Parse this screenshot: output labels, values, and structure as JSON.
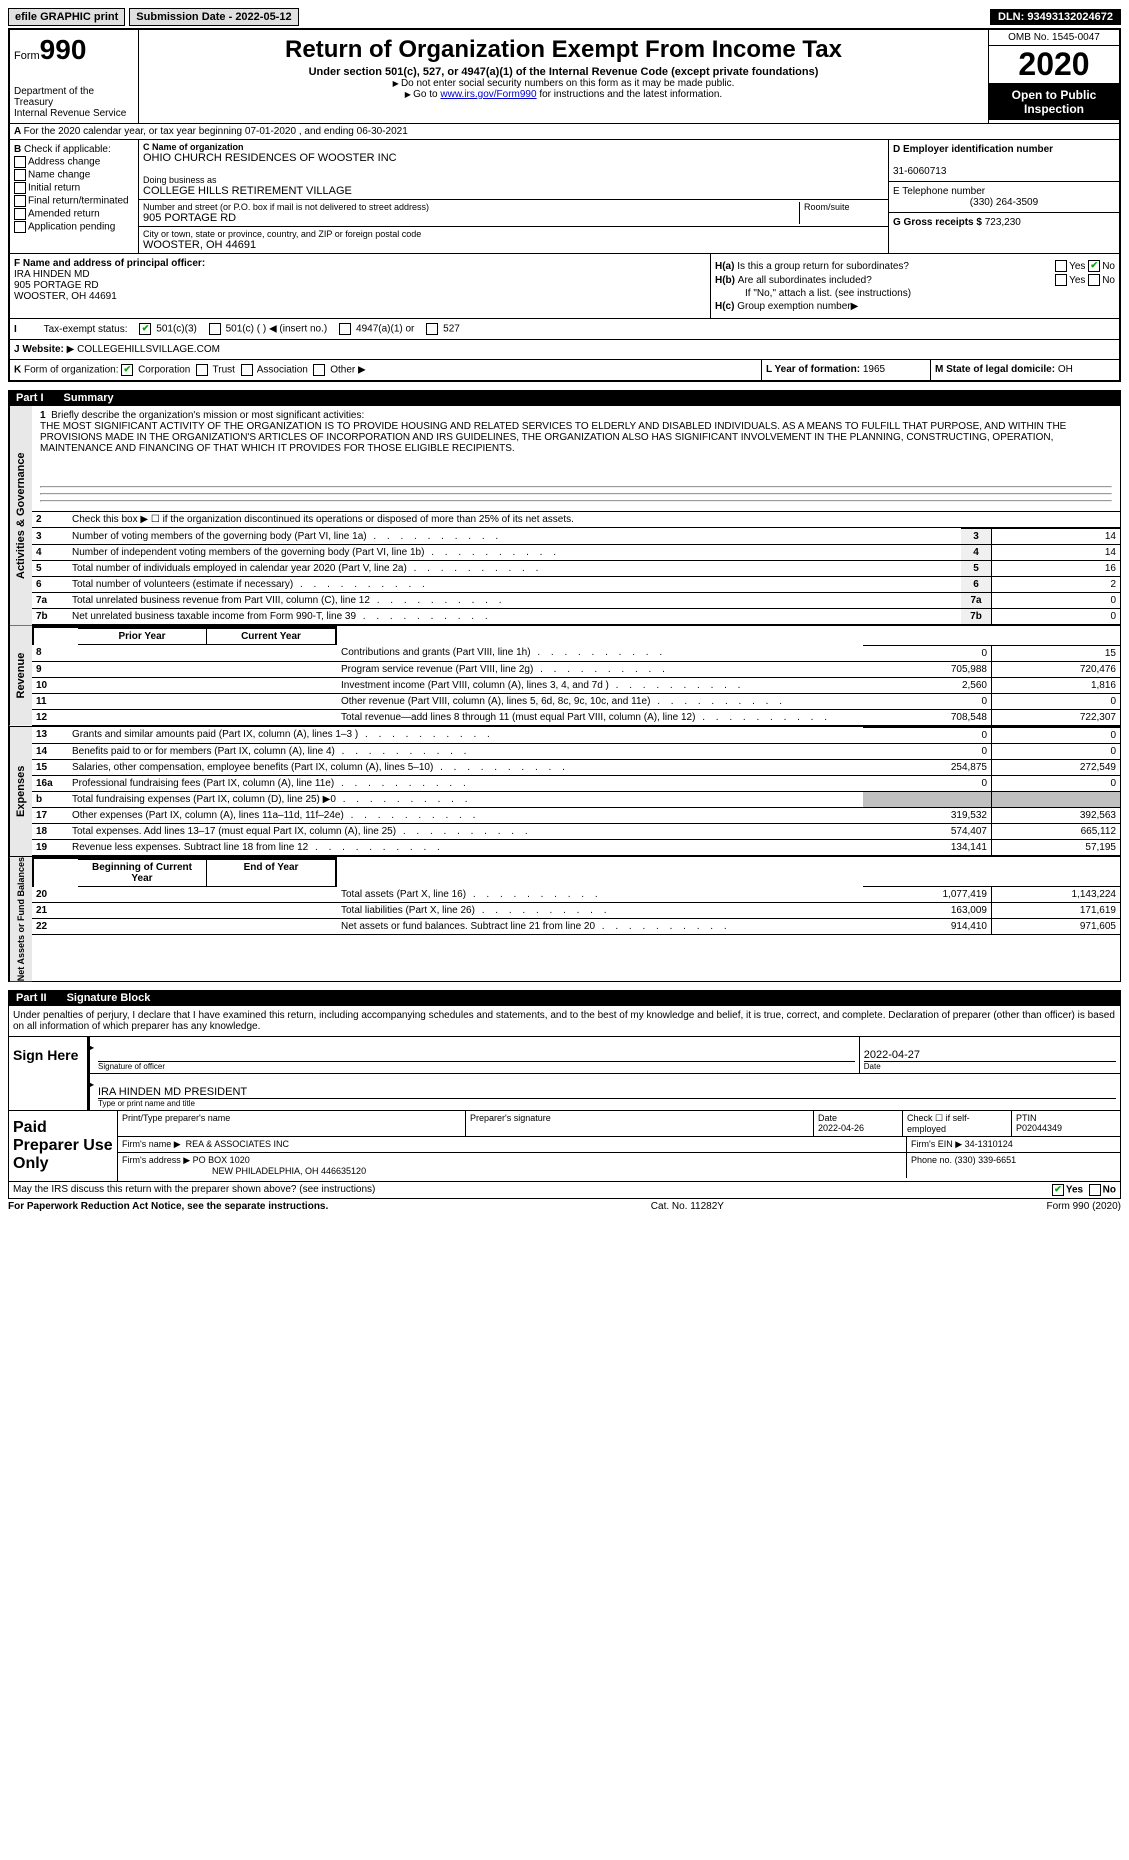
{
  "topbar": {
    "efile": "efile GRAPHIC print",
    "submission": "Submission Date - 2022-05-12",
    "dln": "DLN: 93493132024672"
  },
  "header": {
    "form_label": "Form",
    "form_num": "990",
    "dept": "Department of the Treasury",
    "irs": "Internal Revenue Service",
    "title": "Return of Organization Exempt From Income Tax",
    "subtitle": "Under section 501(c), 527, or 4947(a)(1) of the Internal Revenue Code (except private foundations)",
    "note1": "Do not enter social security numbers on this form as it may be made public.",
    "note2_pre": "Go to ",
    "note2_link": "www.irs.gov/Form990",
    "note2_post": " for instructions and the latest information.",
    "omb": "OMB No. 1545-0047",
    "year": "2020",
    "open": "Open to Public Inspection"
  },
  "rowA": "For the 2020 calendar year, or tax year beginning 07-01-2020   , and ending 06-30-2021",
  "boxB": {
    "label": "Check if applicable:",
    "opts": [
      "Address change",
      "Name change",
      "Initial return",
      "Final return/terminated",
      "Amended return",
      "Application pending"
    ]
  },
  "boxC": {
    "name_label": "C Name of organization",
    "name": "OHIO CHURCH RESIDENCES OF WOOSTER INC",
    "dba_label": "Doing business as",
    "dba": "COLLEGE HILLS RETIREMENT VILLAGE",
    "addr_label": "Number and street (or P.O. box if mail is not delivered to street address)",
    "room_label": "Room/suite",
    "addr": "905 PORTAGE RD",
    "city_label": "City or town, state or province, country, and ZIP or foreign postal code",
    "city": "WOOSTER, OH  44691"
  },
  "boxD": {
    "label": "D Employer identification number",
    "value": "31-6060713",
    "e_label": "E Telephone number",
    "e_value": "(330) 264-3509",
    "g_label": "G Gross receipts $",
    "g_value": "723,230"
  },
  "boxF": {
    "label": "F  Name and address of principal officer:",
    "name": "IRA HINDEN MD",
    "addr": "905 PORTAGE RD",
    "city": "WOOSTER, OH  44691"
  },
  "boxH": {
    "ha": "Is this a group return for subordinates?",
    "hb": "Are all subordinates included?",
    "hb_note": "If \"No,\" attach a list. (see instructions)",
    "hc": "Group exemption number",
    "yes": "Yes",
    "no": "No"
  },
  "rowI": {
    "label": "Tax-exempt status:",
    "opts": [
      "501(c)(3)",
      "501(c) (  ) ◀ (insert no.)",
      "4947(a)(1) or",
      "527"
    ]
  },
  "rowJ": {
    "label": "Website:",
    "value": "COLLEGEHILLSVILLAGE.COM"
  },
  "rowK": {
    "label": "Form of organization:",
    "opts": [
      "Corporation",
      "Trust",
      "Association",
      "Other"
    ],
    "l_label": "L Year of formation:",
    "l_value": "1965",
    "m_label": "M State of legal domicile:",
    "m_value": "OH"
  },
  "part1": {
    "num": "Part I",
    "title": "Summary",
    "section1_title": "Activities & Governance",
    "q1_label": "Briefly describe the organization's mission or most significant activities:",
    "q1_text": "THE MOST SIGNIFICANT ACTIVITY OF THE ORGANIZATION IS TO PROVIDE HOUSING AND RELATED SERVICES TO ELDERLY AND DISABLED INDIVIDUALS. AS A MEANS TO FULFILL THAT PURPOSE, AND WITHIN THE PROVISIONS MADE IN THE ORGANIZATION'S ARTICLES OF INCORPORATION AND IRS GUIDELINES, THE ORGANIZATION ALSO HAS SIGNIFICANT INVOLVEMENT IN THE PLANNING, CONSTRUCTING, OPERATION, MAINTENANCE AND FINANCING OF THAT WHICH IT PROVIDES FOR THOSE ELIGIBLE RECIPIENTS.",
    "q2": "Check this box ▶ ☐  if the organization discontinued its operations or disposed of more than 25% of its net assets.",
    "lines_single": [
      {
        "n": "3",
        "t": "Number of voting members of the governing body (Part VI, line 1a)",
        "v": "14"
      },
      {
        "n": "4",
        "t": "Number of independent voting members of the governing body (Part VI, line 1b)",
        "v": "14"
      },
      {
        "n": "5",
        "t": "Total number of individuals employed in calendar year 2020 (Part V, line 2a)",
        "v": "16"
      },
      {
        "n": "6",
        "t": "Total number of volunteers (estimate if necessary)",
        "v": "2"
      },
      {
        "n": "7a",
        "t": "Total unrelated business revenue from Part VIII, column (C), line 12",
        "v": "0"
      },
      {
        "n": "7b",
        "t": "Net unrelated business taxable income from Form 990-T, line 39",
        "v": "0"
      }
    ],
    "prior": "Prior Year",
    "current": "Current Year",
    "revenue_title": "Revenue",
    "revenue": [
      {
        "n": "8",
        "t": "Contributions and grants (Part VIII, line 1h)",
        "p": "0",
        "c": "15"
      },
      {
        "n": "9",
        "t": "Program service revenue (Part VIII, line 2g)",
        "p": "705,988",
        "c": "720,476"
      },
      {
        "n": "10",
        "t": "Investment income (Part VIII, column (A), lines 3, 4, and 7d )",
        "p": "2,560",
        "c": "1,816"
      },
      {
        "n": "11",
        "t": "Other revenue (Part VIII, column (A), lines 5, 6d, 8c, 9c, 10c, and 11e)",
        "p": "0",
        "c": "0"
      },
      {
        "n": "12",
        "t": "Total revenue—add lines 8 through 11 (must equal Part VIII, column (A), line 12)",
        "p": "708,548",
        "c": "722,307"
      }
    ],
    "expenses_title": "Expenses",
    "expenses": [
      {
        "n": "13",
        "t": "Grants and similar amounts paid (Part IX, column (A), lines 1–3 )",
        "p": "0",
        "c": "0"
      },
      {
        "n": "14",
        "t": "Benefits paid to or for members (Part IX, column (A), line 4)",
        "p": "0",
        "c": "0"
      },
      {
        "n": "15",
        "t": "Salaries, other compensation, employee benefits (Part IX, column (A), lines 5–10)",
        "p": "254,875",
        "c": "272,549"
      },
      {
        "n": "16a",
        "t": "Professional fundraising fees (Part IX, column (A), line 11e)",
        "p": "0",
        "c": "0"
      },
      {
        "n": "b",
        "t": "Total fundraising expenses (Part IX, column (D), line 25) ▶0",
        "p": "",
        "c": "",
        "gray": true
      },
      {
        "n": "17",
        "t": "Other expenses (Part IX, column (A), lines 11a–11d, 11f–24e)",
        "p": "319,532",
        "c": "392,563"
      },
      {
        "n": "18",
        "t": "Total expenses. Add lines 13–17 (must equal Part IX, column (A), line 25)",
        "p": "574,407",
        "c": "665,112"
      },
      {
        "n": "19",
        "t": "Revenue less expenses. Subtract line 18 from line 12",
        "p": "134,141",
        "c": "57,195"
      }
    ],
    "net_title": "Net Assets or Fund Balances",
    "begin": "Beginning of Current Year",
    "end": "End of Year",
    "net": [
      {
        "n": "20",
        "t": "Total assets (Part X, line 16)",
        "p": "1,077,419",
        "c": "1,143,224"
      },
      {
        "n": "21",
        "t": "Total liabilities (Part X, line 26)",
        "p": "163,009",
        "c": "171,619"
      },
      {
        "n": "22",
        "t": "Net assets or fund balances. Subtract line 21 from line 20",
        "p": "914,410",
        "c": "971,605"
      }
    ]
  },
  "part2": {
    "num": "Part II",
    "title": "Signature Block",
    "decl": "Under penalties of perjury, I declare that I have examined this return, including accompanying schedules and statements, and to the best of my knowledge and belief, it is true, correct, and complete. Declaration of preparer (other than officer) is based on all information of which preparer has any knowledge.",
    "sign_here": "Sign Here",
    "sig_of_officer": "Signature of officer",
    "date_label": "Date",
    "sig_date": "2022-04-27",
    "officer_name": "IRA HINDEN MD PRESIDENT",
    "type_name": "Type or print name and title",
    "paid": "Paid Preparer Use Only",
    "prep_name_label": "Print/Type preparer's name",
    "prep_sig_label": "Preparer's signature",
    "prep_date_label": "Date",
    "prep_date": "2022-04-26",
    "check_if": "Check ☐ if self-employed",
    "ptin_label": "PTIN",
    "ptin": "P02044349",
    "firm_name_label": "Firm's name    ▶",
    "firm_name": "REA & ASSOCIATES INC",
    "firm_ein_label": "Firm's EIN ▶",
    "firm_ein": "34-1310124",
    "firm_addr_label": "Firm's address ▶",
    "firm_addr": "PO BOX 1020",
    "firm_city": "NEW PHILADELPHIA, OH  446635120",
    "phone_label": "Phone no.",
    "phone": "(330) 339-6651",
    "discuss": "May the IRS discuss this return with the preparer shown above? (see instructions)",
    "yes": "Yes",
    "no": "No"
  },
  "footer": {
    "left": "For Paperwork Reduction Act Notice, see the separate instructions.",
    "mid": "Cat. No. 11282Y",
    "right": "Form 990 (2020)"
  }
}
